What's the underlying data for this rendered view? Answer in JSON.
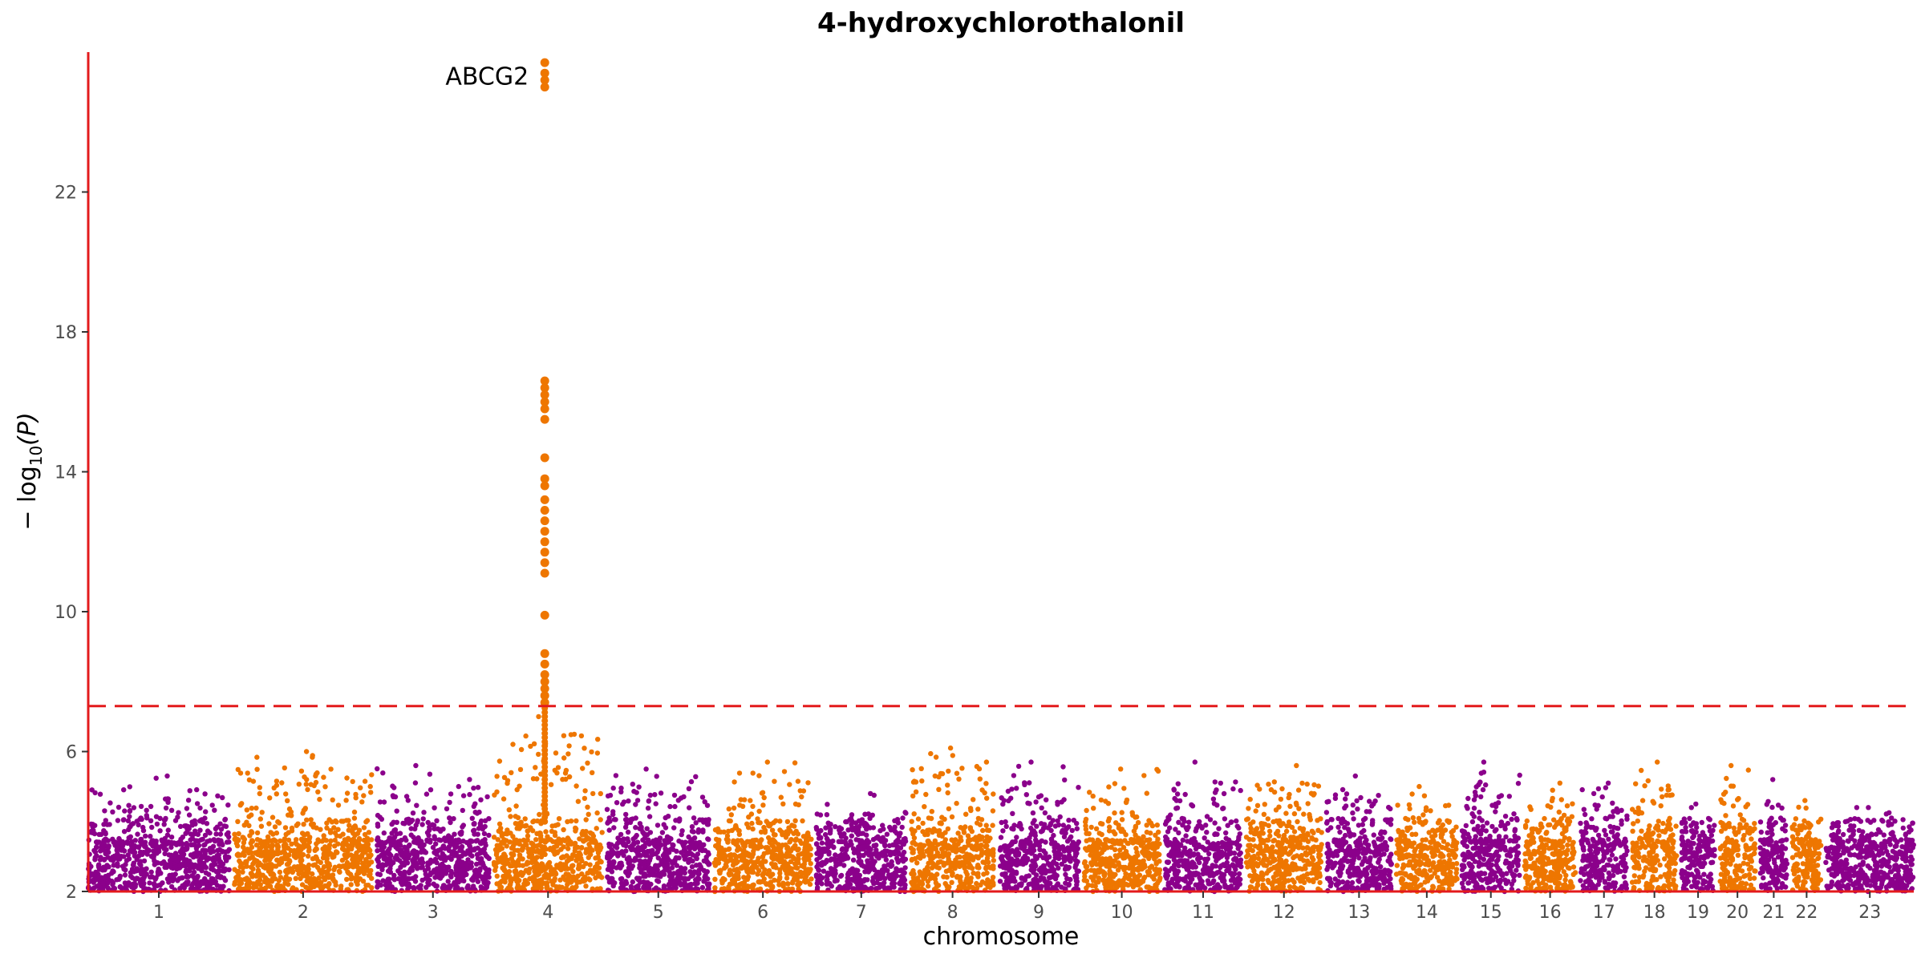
{
  "chart_data": {
    "type": "scatter",
    "subtype": "manhattan",
    "title": "4-hydroxychlorothalonil",
    "xlabel": "chromosome",
    "ylabel_prefix": "− log",
    "ylabel_sub": "10",
    "ylabel_suffix": "(P)",
    "ylim": [
      2,
      26
    ],
    "yticks": [
      2,
      6,
      10,
      14,
      18,
      22
    ],
    "grid": false,
    "significance_threshold": 7.3,
    "colors": {
      "odd": "#8B008B",
      "even": "#EE7600",
      "axis": "#E31A1C",
      "threshold": "#E31A1C"
    },
    "chromosomes": [
      {
        "label": "1",
        "length": 249,
        "peak": 5.3
      },
      {
        "label": "2",
        "length": 243,
        "peak": 6.0
      },
      {
        "label": "3",
        "length": 198,
        "peak": 5.6
      },
      {
        "label": "4",
        "length": 191,
        "peak": 25.7
      },
      {
        "label": "5",
        "length": 181,
        "peak": 5.5
      },
      {
        "label": "6",
        "length": 171,
        "peak": 5.7
      },
      {
        "label": "7",
        "length": 159,
        "peak": 4.8
      },
      {
        "label": "8",
        "length": 146,
        "peak": 6.1
      },
      {
        "label": "9",
        "length": 141,
        "peak": 5.7
      },
      {
        "label": "10",
        "length": 135,
        "peak": 5.5
      },
      {
        "label": "11",
        "length": 135,
        "peak": 5.7
      },
      {
        "label": "12",
        "length": 133,
        "peak": 5.6
      },
      {
        "label": "13",
        "length": 115,
        "peak": 5.3
      },
      {
        "label": "14",
        "length": 107,
        "peak": 5.0
      },
      {
        "label": "15",
        "length": 102,
        "peak": 5.7
      },
      {
        "label": "16",
        "length": 90,
        "peak": 5.1
      },
      {
        "label": "17",
        "length": 83,
        "peak": 5.1
      },
      {
        "label": "18",
        "length": 78,
        "peak": 5.7
      },
      {
        "label": "19",
        "length": 59,
        "peak": 4.5
      },
      {
        "label": "20",
        "length": 63,
        "peak": 5.6
      },
      {
        "label": "21",
        "length": 48,
        "peak": 5.2
      },
      {
        "label": "22",
        "length": 51,
        "peak": 4.6
      },
      {
        "label": "23",
        "length": 155,
        "peak": 4.4
      }
    ],
    "top_hit": {
      "label": "ABCG2",
      "chromosome": "4",
      "values": [
        25.7,
        25.4,
        25.2,
        25.0,
        16.6,
        16.4,
        16.2,
        16.0,
        15.8,
        15.5,
        14.4,
        13.8,
        13.6,
        13.2,
        12.9,
        12.6,
        12.3,
        12.0,
        11.7,
        11.4,
        11.1,
        9.9,
        8.8,
        8.5,
        8.2,
        8.0,
        7.8,
        7.6,
        7.4
      ]
    },
    "annotations": [
      {
        "text": "ABCG2",
        "x": "4",
        "y": 25.3
      }
    ]
  }
}
